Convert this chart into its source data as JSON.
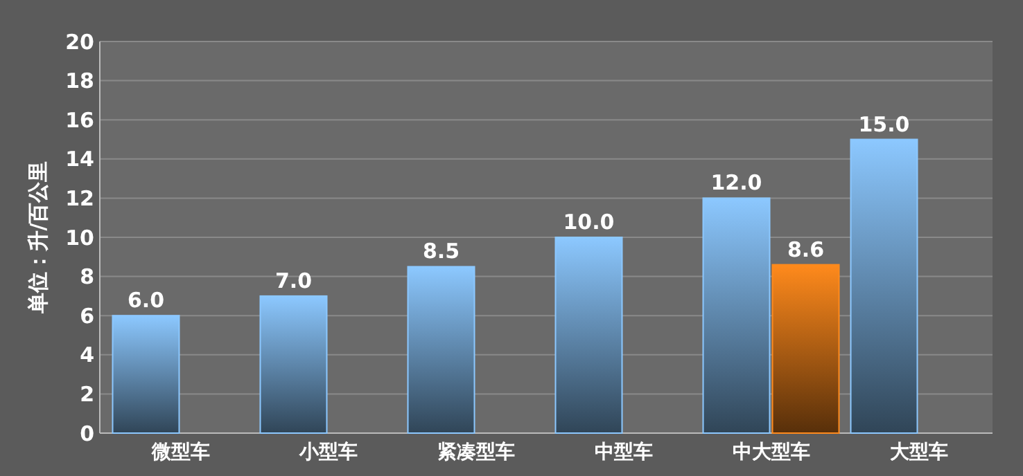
{
  "chart_data": {
    "type": "bar",
    "ylabel": "单位：升/百公里",
    "categories": [
      "微型车",
      "小型车",
      "紧凑型车",
      "中型车",
      "中大型车",
      "大型车"
    ],
    "series": [
      {
        "color": "#8cc8ff",
        "values": [
          6.0,
          7.0,
          8.5,
          10.0,
          12.0,
          15.0
        ],
        "value_labels": [
          "6.0",
          "7.0",
          "8.5",
          "10.0",
          "12.0",
          "15.0"
        ]
      },
      {
        "color": "#ff8a1c",
        "values": [
          null,
          null,
          null,
          null,
          8.6,
          null
        ],
        "value_labels": [
          null,
          null,
          null,
          null,
          "8.6",
          null
        ]
      }
    ],
    "ylim": [
      0,
      20
    ],
    "yticks": [
      0,
      2,
      4,
      6,
      8,
      10,
      12,
      14,
      16,
      18,
      20
    ],
    "grid": "y"
  }
}
